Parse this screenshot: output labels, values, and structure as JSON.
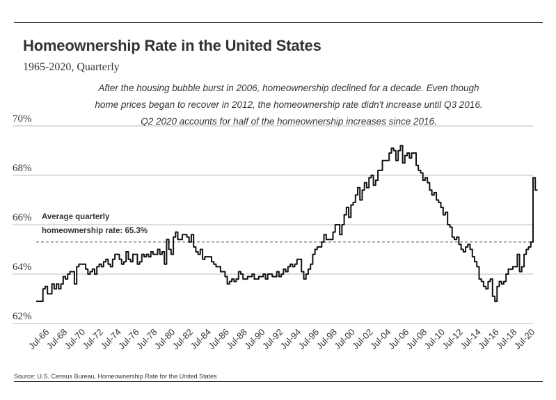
{
  "title": "Homeownership Rate in the United States",
  "subtitle": "1965-2020, Quarterly",
  "annotation": "After the housing bubble burst in 2006, homeownership declined for a decade. Even though home prices began to recover in 2012, the homeownership rate didn't increase until Q3 2016. Q2 2020 accounts for half of the homeownership increases since 2016.",
  "average_label_line1": "Average quarterly",
  "average_label_line2": "homeownership rate: 65.3%",
  "source": "Source:  U.S. Census Bureau, Homeownership Rate for the United States",
  "colors": {
    "line": "#111111",
    "grid": "#bbbbbb",
    "average": "#555555",
    "text": "#333333"
  },
  "chart_data": {
    "type": "line",
    "y_unit": "%",
    "ylim": [
      62,
      70
    ],
    "yticks": [
      62,
      64,
      66,
      68,
      70
    ],
    "ytick_labels": [
      "62%",
      "64%",
      "66%",
      "68%",
      "70%"
    ],
    "xlim": [
      1965.0,
      2020.25
    ],
    "xtick_labels": [
      "Jul-66",
      "Jul-68",
      "Jul-70",
      "Jul-72",
      "Jul-74",
      "Jul-76",
      "Jul-78",
      "Jul-80",
      "Jul-82",
      "Jul-84",
      "Jul-86",
      "Jul-88",
      "Jul-90",
      "Jul-92",
      "Jul-94",
      "Jul-96",
      "Jul-98",
      "Jul-00",
      "Jul-02",
      "Jul-04",
      "Jul-06",
      "Jul-08",
      "Jul-10",
      "Jul-12",
      "Jul-14",
      "Jul-16",
      "Jul-18",
      "Jul-20"
    ],
    "xtick_values": [
      1966.5,
      1968.5,
      1970.5,
      1972.5,
      1974.5,
      1976.5,
      1978.5,
      1980.5,
      1982.5,
      1984.5,
      1986.5,
      1988.5,
      1990.5,
      1992.5,
      1994.5,
      1996.5,
      1998.5,
      2000.5,
      2002.5,
      2004.5,
      2006.5,
      2008.5,
      2010.5,
      2012.5,
      2014.5,
      2016.5,
      2018.5,
      2020.5
    ],
    "average_value": 65.3,
    "grid": true,
    "legend": "none",
    "series": [
      {
        "x_start": "1965 Q1",
        "frequency": "quarterly",
        "values": [
          62.9,
          62.9,
          62.9,
          63.4,
          63.5,
          63.2,
          63.2,
          63.6,
          63.4,
          63.6,
          63.4,
          63.6,
          63.9,
          63.8,
          64.0,
          64.1,
          64.1,
          63.6,
          64.3,
          64.4,
          64.4,
          64.4,
          64.2,
          64.0,
          64.1,
          64.2,
          64.0,
          64.3,
          64.4,
          64.3,
          64.5,
          64.6,
          64.4,
          64.3,
          64.6,
          64.8,
          64.8,
          64.6,
          64.4,
          64.5,
          64.9,
          64.6,
          64.5,
          64.8,
          64.8,
          64.4,
          64.5,
          64.8,
          64.7,
          64.8,
          64.7,
          64.9,
          64.8,
          64.8,
          65.0,
          64.8,
          64.9,
          64.4,
          65.4,
          65.0,
          64.8,
          65.5,
          65.7,
          65.4,
          65.4,
          65.6,
          65.6,
          65.5,
          65.3,
          65.6,
          65.1,
          64.9,
          64.8,
          65.0,
          64.6,
          64.7,
          64.7,
          64.7,
          64.5,
          64.4,
          64.3,
          64.3,
          64.1,
          64.1,
          63.9,
          63.6,
          63.7,
          63.8,
          63.7,
          63.8,
          64.1,
          64.0,
          63.8,
          63.8,
          63.9,
          63.9,
          64.0,
          63.8,
          63.8,
          63.9,
          63.9,
          64.0,
          63.8,
          64.0,
          64.0,
          63.9,
          63.9,
          64.1,
          63.9,
          64.0,
          64.2,
          64.1,
          64.3,
          64.4,
          64.3,
          64.4,
          64.6,
          64.6,
          64.1,
          63.8,
          64.0,
          64.2,
          64.4,
          64.8,
          65.0,
          65.1,
          65.1,
          65.3,
          65.6,
          65.4,
          65.4,
          65.4,
          65.7,
          66.0,
          66.0,
          65.6,
          66.0,
          66.4,
          66.7,
          66.3,
          66.8,
          66.9,
          67.2,
          67.5,
          67.0,
          67.4,
          67.7,
          67.5,
          67.9,
          68.0,
          67.6,
          67.8,
          68.2,
          68.2,
          68.6,
          68.6,
          68.6,
          68.9,
          69.1,
          69.0,
          68.6,
          69.0,
          69.2,
          68.5,
          68.8,
          68.9,
          68.7,
          68.9,
          68.9,
          68.4,
          68.2,
          68.1,
          67.8,
          67.9,
          67.7,
          67.4,
          67.2,
          67.3,
          67.0,
          66.9,
          66.7,
          66.4,
          66.5,
          66.0,
          65.9,
          65.5,
          65.4,
          65.5,
          65.2,
          65.0,
          64.9,
          65.1,
          65.2,
          65.0,
          64.7,
          64.5,
          64.3,
          63.8,
          63.7,
          63.5,
          63.4,
          63.7,
          63.8,
          63.1,
          62.9,
          63.5,
          63.7,
          63.6,
          63.7,
          64.0,
          64.2,
          64.2,
          64.3,
          64.3,
          64.8,
          64.1,
          64.3,
          64.8,
          65.0,
          65.1,
          65.3,
          67.9,
          67.4
        ]
      }
    ]
  }
}
